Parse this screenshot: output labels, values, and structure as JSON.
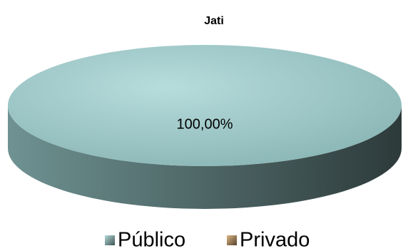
{
  "chart_data": {
    "type": "pie",
    "title": "Jati",
    "categories": [
      "Público",
      "Privado"
    ],
    "values": [
      100,
      0
    ],
    "value_labels": [
      "100,00%",
      null
    ],
    "colors": [
      "#9fd0d0",
      "#d4a56a"
    ],
    "legend": "bottom",
    "3d": true
  }
}
